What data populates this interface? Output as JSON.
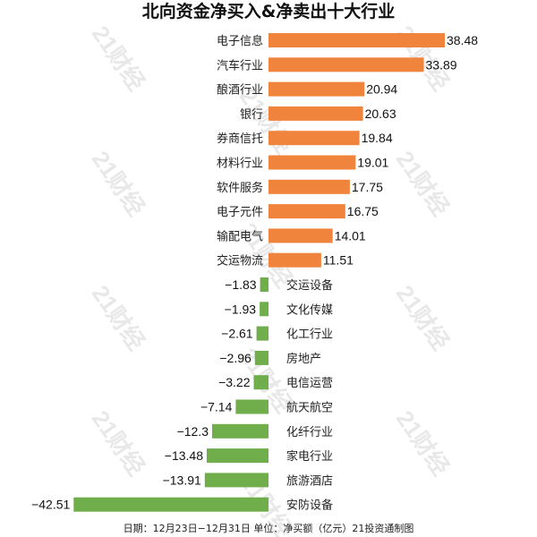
{
  "chart_data": {
    "type": "bar",
    "orientation": "horizontal",
    "title": "北向资金净买入&净卖出十大行业",
    "categories": [
      "电子信息",
      "汽车行业",
      "酿酒行业",
      "银行",
      "券商信托",
      "材料行业",
      "软件服务",
      "电子元件",
      "输配电气",
      "交运物流",
      "交运设备",
      "文化传媒",
      "化工行业",
      "房地产",
      "电信运营",
      "航天航空",
      "化纤行业",
      "家电行业",
      "旅游酒店",
      "安防设备"
    ],
    "values": [
      38.48,
      33.89,
      20.94,
      20.63,
      19.84,
      19.01,
      17.75,
      16.75,
      14.01,
      11.51,
      -1.83,
      -1.93,
      -2.61,
      -2.96,
      -3.22,
      -7.14,
      -12.3,
      -13.48,
      -13.91,
      -42.51
    ],
    "value_labels": [
      "38.48",
      "33.89",
      "20.94",
      "20.63",
      "19.84",
      "19.01",
      "17.75",
      "16.75",
      "14.01",
      "11.51",
      "−1.83",
      "−1.93",
      "−2.61",
      "−2.96",
      "−3.22",
      "−7.14",
      "−12.3",
      "−13.48",
      "−13.91",
      "−42.51"
    ],
    "positive_color": "#f0843c",
    "negative_color": "#6fae4a",
    "footnote": "日期：12月23日−12月31日 单位：净买额（亿元）21投资通制图",
    "watermark": "21财经"
  }
}
